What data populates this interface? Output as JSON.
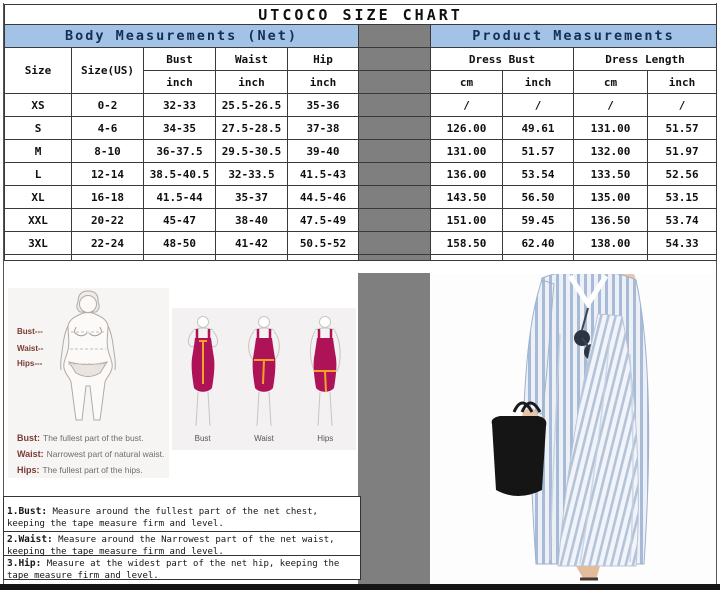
{
  "title": "UTCOCO SIZE CHART",
  "colors": {
    "header_bg": "#a2c3e6",
    "header_text": "#132f55",
    "separator_gray": "#7f7f7f",
    "dress_magenta": "#ae1257",
    "tape_orange": "#f2a229",
    "photo_stripe_blue": "#a7bbd6"
  },
  "body_section": {
    "header": "Body Measurements (Net)",
    "col_size": "Size",
    "col_size_us": "Size(US)",
    "cols": [
      "Bust",
      "Waist",
      "Hip"
    ],
    "unit": "inch"
  },
  "product_section": {
    "header": "Product Measurements",
    "groups": [
      "Dress Bust",
      "Dress Length"
    ],
    "units": [
      "cm",
      "inch",
      "cm",
      "inch"
    ]
  },
  "rows": [
    {
      "size": "XS",
      "us": "0-2",
      "bust": "32-33",
      "waist": "25.5-26.5",
      "hip": "35-36",
      "db_cm": "/",
      "db_in": "/",
      "dl_cm": "/",
      "dl_in": "/"
    },
    {
      "size": "S",
      "us": "4-6",
      "bust": "34-35",
      "waist": "27.5-28.5",
      "hip": "37-38",
      "db_cm": "126.00",
      "db_in": "49.61",
      "dl_cm": "131.00",
      "dl_in": "51.57"
    },
    {
      "size": "M",
      "us": "8-10",
      "bust": "36-37.5",
      "waist": "29.5-30.5",
      "hip": "39-40",
      "db_cm": "131.00",
      "db_in": "51.57",
      "dl_cm": "132.00",
      "dl_in": "51.97"
    },
    {
      "size": "L",
      "us": "12-14",
      "bust": "38.5-40.5",
      "waist": "32-33.5",
      "hip": "41.5-43",
      "db_cm": "136.00",
      "db_in": "53.54",
      "dl_cm": "133.50",
      "dl_in": "52.56"
    },
    {
      "size": "XL",
      "us": "16-18",
      "bust": "41.5-44",
      "waist": "35-37",
      "hip": "44.5-46",
      "db_cm": "143.50",
      "db_in": "56.50",
      "dl_cm": "135.00",
      "dl_in": "53.15"
    },
    {
      "size": "XXL",
      "us": "20-22",
      "bust": "45-47",
      "waist": "38-40",
      "hip": "47.5-49",
      "db_cm": "151.00",
      "db_in": "59.45",
      "dl_cm": "136.50",
      "dl_in": "53.74"
    },
    {
      "size": "3XL",
      "us": "22-24",
      "bust": "48-50",
      "waist": "41-42",
      "hip": "50.5-52",
      "db_cm": "158.50",
      "db_in": "62.40",
      "dl_cm": "138.00",
      "dl_in": "54.33"
    }
  ],
  "diagram": {
    "pointer_labels": [
      "Bust---",
      "Waist--",
      "Hips---"
    ],
    "legend": [
      {
        "label": "Bust:",
        "text": "The fullest part of the bust."
      },
      {
        "label": "Waist:",
        "text": "Narrowest part of natural waist."
      },
      {
        "label": "Hips:",
        "text": "The fullest part of the hips."
      }
    ],
    "figure_labels": [
      "Bust",
      "Waist",
      "Hips"
    ]
  },
  "instructions": [
    {
      "label": "1.Bust:",
      "text": " Measure around the fullest part of the net chest, keeping the tape  measure firm and level."
    },
    {
      "label": "2.Waist:",
      "text": " Measure around the Narrowest part of the net waist, keeping the tape  measure firm and level."
    },
    {
      "label": "3.Hip:",
      "text": " Measure at the widest part of the net hip, keeping the tape measure firm and level."
    }
  ]
}
